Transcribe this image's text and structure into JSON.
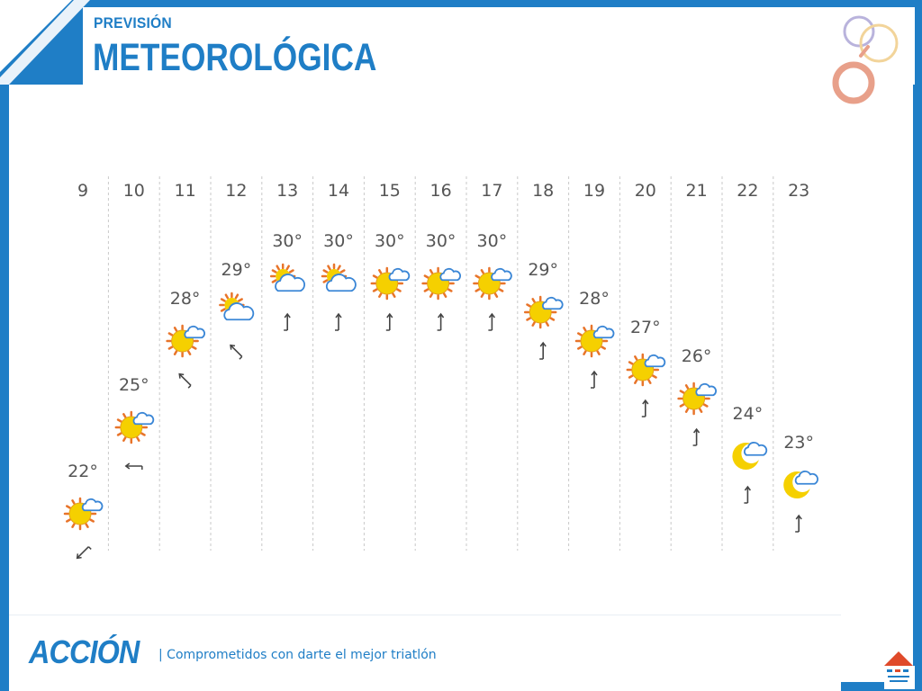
{
  "header": {
    "subtitle": "PREVISIÓN",
    "title": "METEOROLÓGICA"
  },
  "footer": {
    "brand": "ACCIÓN",
    "slogan": "| Comprometidos con darte el mejor triatlón"
  },
  "colors": {
    "brand_blue": "#1f7ec6",
    "sun": "#f5d000",
    "sun_ray": "#e8742a",
    "cloud": "#3a86d6",
    "text": "#555555"
  },
  "chart_data": {
    "type": "line",
    "x": [
      "9",
      "10",
      "11",
      "12",
      "13",
      "14",
      "15",
      "16",
      "17",
      "18",
      "19",
      "20",
      "21",
      "22",
      "23"
    ],
    "values": [
      22,
      25,
      28,
      29,
      30,
      30,
      30,
      30,
      30,
      29,
      28,
      27,
      26,
      24,
      23
    ],
    "labels": [
      "22°",
      "25°",
      "28°",
      "29°",
      "30°",
      "30°",
      "30°",
      "30°",
      "30°",
      "29°",
      "28°",
      "27°",
      "26°",
      "24°",
      "23°"
    ],
    "icons": [
      "sun-cloud-icon",
      "sun-cloud-icon",
      "sun-cloud-icon",
      "cloudy-icon",
      "cloudy-icon",
      "cloudy-icon",
      "sun-cloud-icon",
      "sun-cloud-icon",
      "sun-cloud-icon",
      "sun-cloud-icon",
      "sun-cloud-icon",
      "sun-cloud-icon",
      "sun-cloud-icon",
      "moon-cloud-icon",
      "moon-cloud-icon"
    ],
    "wind": [
      "southwest",
      "west",
      "northwest",
      "northwest",
      "north",
      "north",
      "north",
      "north",
      "north",
      "north",
      "north",
      "north",
      "north",
      "north",
      "north"
    ],
    "grid": true
  }
}
